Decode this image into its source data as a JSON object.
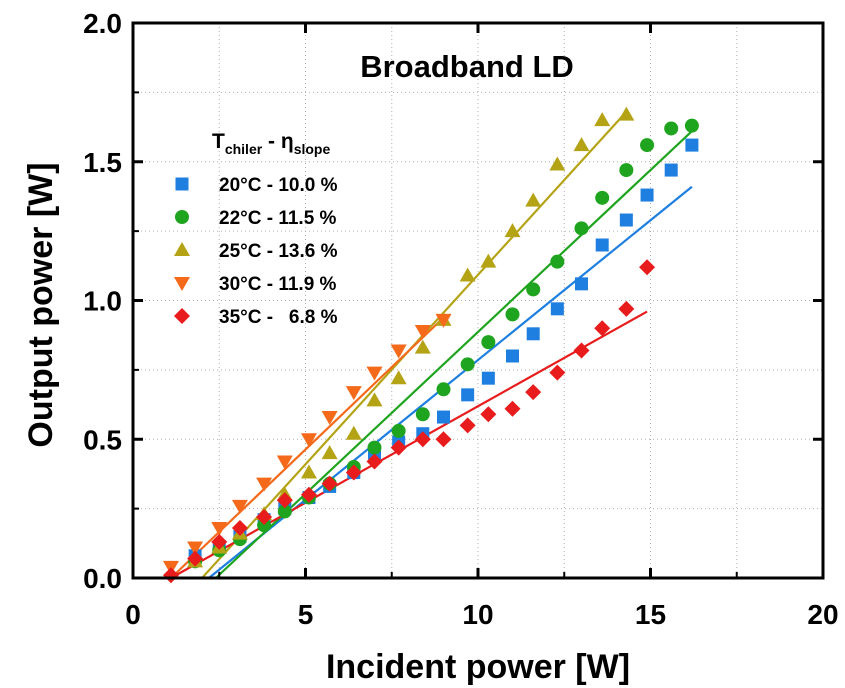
{
  "chart_data": {
    "type": "scatter",
    "title": "Broadband LD",
    "xlabel": "Incident power [W]",
    "ylabel": "Output power [W]",
    "xlim": [
      0,
      20
    ],
    "ylim": [
      0,
      2.0
    ],
    "xticks": [
      "0",
      "5",
      "10",
      "15",
      "20"
    ],
    "yticks": [
      "0.0",
      "0.5",
      "1.0",
      "1.5",
      "2.0"
    ],
    "grid": true,
    "legend_position": "upper-left",
    "legend_header": {
      "main": "T",
      "main_sub": "chiler",
      "sep": " - η",
      "sep_sub": "slope"
    },
    "series": [
      {
        "name": "20°C - 10.0 %",
        "marker": "square",
        "color": "#1e7fe0",
        "points": [
          [
            1.8,
            0.08
          ],
          [
            2.5,
            0.11
          ],
          [
            3.1,
            0.15
          ],
          [
            3.8,
            0.21
          ],
          [
            4.4,
            0.25
          ],
          [
            5.1,
            0.29
          ],
          [
            5.7,
            0.33
          ],
          [
            6.4,
            0.38
          ],
          [
            7.0,
            0.45
          ],
          [
            7.7,
            0.49
          ],
          [
            8.4,
            0.52
          ],
          [
            9.0,
            0.58
          ],
          [
            9.7,
            0.66
          ],
          [
            10.3,
            0.72
          ],
          [
            11.0,
            0.8
          ],
          [
            11.6,
            0.88
          ],
          [
            12.3,
            0.97
          ],
          [
            13.0,
            1.06
          ],
          [
            13.6,
            1.2
          ],
          [
            14.3,
            1.29
          ],
          [
            14.9,
            1.38
          ],
          [
            15.6,
            1.47
          ],
          [
            16.2,
            1.56
          ]
        ],
        "fit": [
          [
            2.2,
            0.0
          ],
          [
            16.2,
            1.41
          ]
        ]
      },
      {
        "name": "22°C - 11.5 %",
        "marker": "circle",
        "color": "#1ea41e",
        "points": [
          [
            1.8,
            0.06
          ],
          [
            2.5,
            0.1
          ],
          [
            3.1,
            0.14
          ],
          [
            3.8,
            0.19
          ],
          [
            4.4,
            0.24
          ],
          [
            5.1,
            0.29
          ],
          [
            5.7,
            0.34
          ],
          [
            6.4,
            0.4
          ],
          [
            7.0,
            0.47
          ],
          [
            7.7,
            0.53
          ],
          [
            8.4,
            0.59
          ],
          [
            9.0,
            0.68
          ],
          [
            9.7,
            0.77
          ],
          [
            10.3,
            0.85
          ],
          [
            11.0,
            0.95
          ],
          [
            11.6,
            1.04
          ],
          [
            12.3,
            1.14
          ],
          [
            13.0,
            1.26
          ],
          [
            13.6,
            1.37
          ],
          [
            14.3,
            1.47
          ],
          [
            14.9,
            1.56
          ],
          [
            15.6,
            1.62
          ],
          [
            16.2,
            1.63
          ]
        ],
        "fit": [
          [
            2.4,
            0.0
          ],
          [
            16.2,
            1.61
          ]
        ]
      },
      {
        "name": "25°C - 13.6 %",
        "marker": "triangle-up",
        "color": "#b5a316",
        "points": [
          [
            1.8,
            0.06
          ],
          [
            2.5,
            0.11
          ],
          [
            3.1,
            0.16
          ],
          [
            3.8,
            0.23
          ],
          [
            4.4,
            0.3
          ],
          [
            5.1,
            0.38
          ],
          [
            5.7,
            0.45
          ],
          [
            6.4,
            0.52
          ],
          [
            7.0,
            0.64
          ],
          [
            7.7,
            0.72
          ],
          [
            8.4,
            0.83
          ],
          [
            9.0,
            0.93
          ],
          [
            9.7,
            1.09
          ],
          [
            10.3,
            1.14
          ],
          [
            11.0,
            1.25
          ],
          [
            11.6,
            1.36
          ],
          [
            12.3,
            1.49
          ],
          [
            13.0,
            1.56
          ],
          [
            13.6,
            1.65
          ],
          [
            14.3,
            1.67
          ]
        ],
        "fit": [
          [
            2.0,
            0.0
          ],
          [
            14.3,
            1.68
          ]
        ]
      },
      {
        "name": "30°C - 11.9 %",
        "marker": "triangle-down",
        "color": "#f56a1a",
        "points": [
          [
            1.1,
            0.04
          ],
          [
            1.8,
            0.11
          ],
          [
            2.5,
            0.18
          ],
          [
            3.1,
            0.26
          ],
          [
            3.8,
            0.34
          ],
          [
            4.4,
            0.42
          ],
          [
            5.1,
            0.5
          ],
          [
            5.7,
            0.58
          ],
          [
            6.4,
            0.67
          ],
          [
            7.0,
            0.74
          ],
          [
            7.7,
            0.82
          ],
          [
            8.4,
            0.89
          ],
          [
            9.0,
            0.93
          ]
        ],
        "fit": [
          [
            1.1,
            0.0
          ],
          [
            9.1,
            0.95
          ]
        ]
      },
      {
        "name": "35°C -   6.8 %",
        "marker": "diamond",
        "color": "#e81c1c",
        "points": [
          [
            1.1,
            0.01
          ],
          [
            1.8,
            0.07
          ],
          [
            2.5,
            0.13
          ],
          [
            3.1,
            0.18
          ],
          [
            3.8,
            0.22
          ],
          [
            4.4,
            0.28
          ],
          [
            5.1,
            0.3
          ],
          [
            5.7,
            0.34
          ],
          [
            6.4,
            0.38
          ],
          [
            7.0,
            0.42
          ],
          [
            7.7,
            0.47
          ],
          [
            8.4,
            0.5
          ],
          [
            9.0,
            0.5
          ],
          [
            9.7,
            0.55
          ],
          [
            10.3,
            0.59
          ],
          [
            11.0,
            0.61
          ],
          [
            11.6,
            0.67
          ],
          [
            12.3,
            0.74
          ],
          [
            13.0,
            0.82
          ],
          [
            13.6,
            0.9
          ],
          [
            14.3,
            0.97
          ],
          [
            14.9,
            1.12
          ]
        ],
        "fit": [
          [
            1.1,
            0.0
          ],
          [
            14.9,
            0.96
          ]
        ]
      }
    ]
  }
}
